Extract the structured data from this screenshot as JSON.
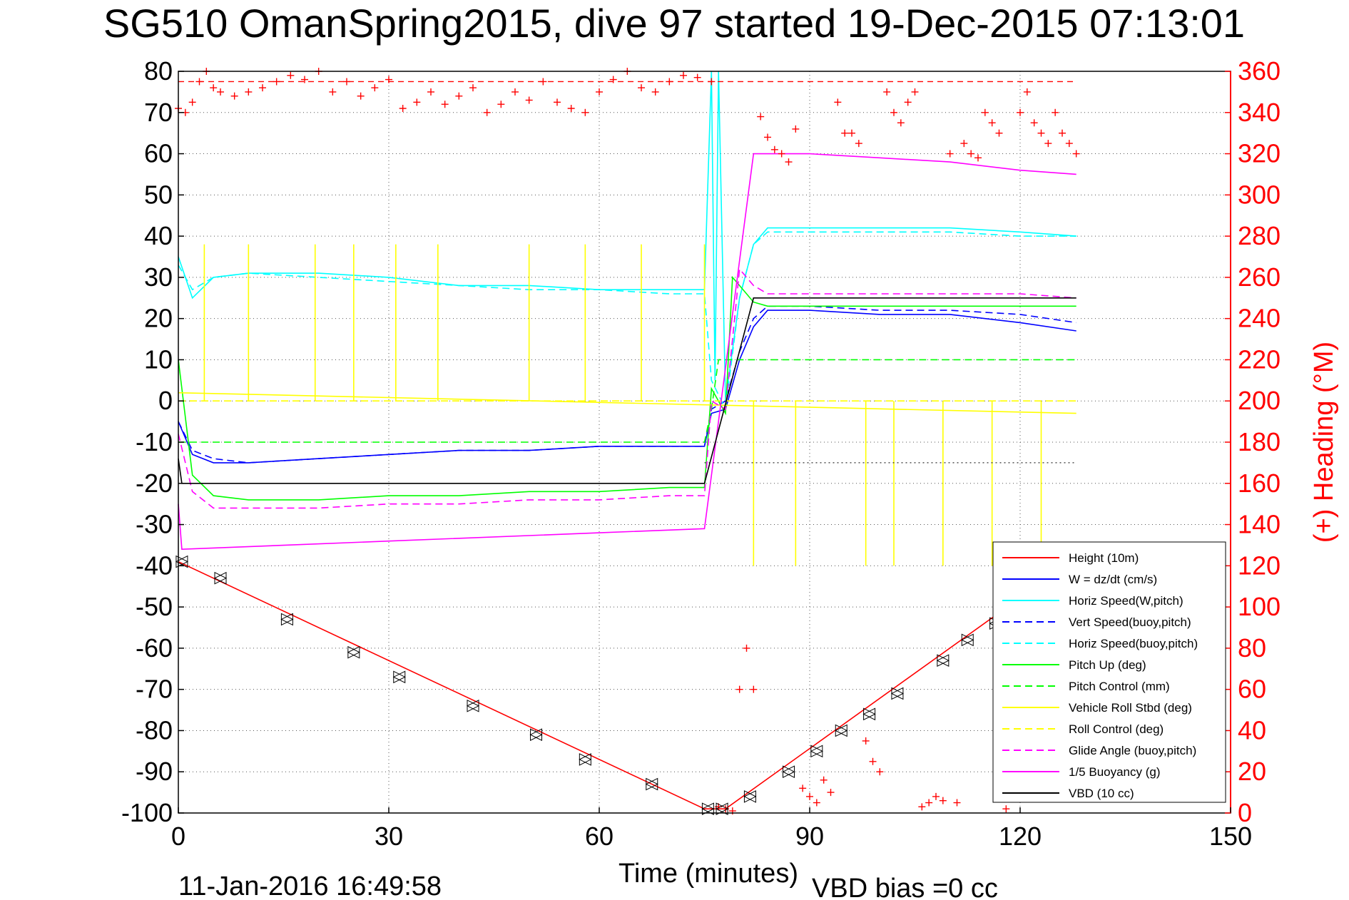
{
  "chart_data": {
    "type": "line",
    "title": "SG510 OmanSpring2015, dive 97 started 19-Dec-2015 07:13:01",
    "xlabel": "Time (minutes)",
    "ylabel_right": "(+) Heading (°M)",
    "xlim": [
      0,
      150
    ],
    "ylim": [
      -100,
      80
    ],
    "ylim_right": [
      0,
      360
    ],
    "x_ticks": [
      "0",
      "30",
      "60",
      "90",
      "120",
      "150"
    ],
    "x_tick_values": [
      0,
      30,
      60,
      90,
      120,
      150
    ],
    "y_ticks": [
      "80",
      "70",
      "60",
      "50",
      "40",
      "30",
      "20",
      "10",
      "0",
      "-10",
      "-20",
      "-30",
      "-40",
      "-50",
      "-60",
      "-70",
      "-80",
      "-90",
      "-100"
    ],
    "y_tick_values": [
      80,
      70,
      60,
      50,
      40,
      30,
      20,
      10,
      0,
      -10,
      -20,
      -30,
      -40,
      -50,
      -60,
      -70,
      -80,
      -90,
      -100
    ],
    "y_ticks_right": [
      "360",
      "340",
      "320",
      "300",
      "280",
      "260",
      "240",
      "220",
      "200",
      "180",
      "160",
      "140",
      "120",
      "100",
      "80",
      "60",
      "40",
      "20",
      "0"
    ],
    "y_tick_values_right": [
      360,
      340,
      320,
      300,
      280,
      260,
      240,
      220,
      200,
      180,
      160,
      140,
      120,
      100,
      80,
      60,
      40,
      20,
      0
    ],
    "grid": true,
    "legend_position": "bottom-right",
    "date_label": "11-Jan-2016 16:49:58",
    "vbd_bias_label": "VBD bias =0 cc",
    "series": [
      {
        "name": "Height (10m)",
        "color": "#ff0000",
        "style": "solid",
        "x": [
          0,
          75,
          78,
          128
        ],
        "y": [
          -39,
          -99,
          -99,
          -38
        ]
      },
      {
        "name": "W = dz/dt (cm/s)",
        "color": "#0000ff",
        "style": "solid",
        "x": [
          0,
          2,
          5,
          10,
          20,
          30,
          40,
          50,
          60,
          70,
          75,
          76,
          78,
          80,
          82,
          84,
          90,
          100,
          110,
          120,
          128
        ],
        "y": [
          -5,
          -13,
          -15,
          -15,
          -14,
          -13,
          -12,
          -12,
          -11,
          -11,
          -11,
          -3,
          -2,
          10,
          18,
          22,
          22,
          21,
          21,
          19,
          17
        ]
      },
      {
        "name": "Horiz Speed(W,pitch)",
        "color": "#00ffff",
        "style": "solid",
        "x": [
          0,
          2,
          5,
          10,
          20,
          30,
          40,
          50,
          60,
          70,
          75,
          76,
          76.5,
          77,
          78,
          80,
          82,
          84,
          90,
          100,
          110,
          120,
          128
        ],
        "y": [
          35,
          25,
          30,
          31,
          31,
          30,
          28,
          28,
          27,
          27,
          27,
          80,
          5,
          80,
          0,
          25,
          38,
          42,
          42,
          42,
          42,
          41,
          40
        ]
      },
      {
        "name": "Vert Speed(buoy,pitch)",
        "color": "#0000ff",
        "style": "dashed",
        "x": [
          0,
          2,
          5,
          10,
          20,
          30,
          40,
          50,
          60,
          70,
          75,
          76,
          78,
          80,
          82,
          84,
          90,
          100,
          110,
          120,
          128
        ],
        "y": [
          -5,
          -12,
          -14,
          -15,
          -14,
          -13,
          -12,
          -12,
          -11,
          -11,
          -11,
          -2,
          0,
          12,
          20,
          23,
          23,
          22,
          22,
          21,
          19
        ]
      },
      {
        "name": "Horiz Speed(buoy,pitch)",
        "color": "#00ffff",
        "style": "dashed",
        "x": [
          0,
          2,
          5,
          10,
          20,
          30,
          40,
          50,
          60,
          70,
          75,
          76,
          78,
          80,
          82,
          84,
          90,
          100,
          110,
          120,
          128
        ],
        "y": [
          33,
          27,
          30,
          31,
          30,
          29,
          28,
          27,
          27,
          26,
          26,
          5,
          -2,
          25,
          38,
          41,
          41,
          41,
          41,
          40,
          40
        ]
      },
      {
        "name": "Pitch Up (deg)",
        "color": "#00ff00",
        "style": "solid",
        "x": [
          0,
          2,
          5,
          10,
          20,
          30,
          40,
          50,
          60,
          70,
          75,
          76,
          78,
          79,
          80,
          82,
          84,
          90,
          100,
          110,
          120,
          128
        ],
        "y": [
          10,
          -18,
          -23,
          -24,
          -24,
          -23,
          -23,
          -22,
          -22,
          -21,
          -21,
          3,
          -3,
          30,
          28,
          24,
          23,
          23,
          23,
          23,
          23,
          23
        ]
      },
      {
        "name": "Pitch Control (mm)",
        "color": "#00ff00",
        "style": "dashed",
        "x": [
          0,
          1,
          30,
          60,
          75,
          76,
          77,
          80,
          128
        ],
        "y": [
          -10,
          -10,
          -10,
          -10,
          -10,
          -2,
          10,
          10,
          10
        ]
      },
      {
        "name": "Vehicle Roll Stbd (deg)",
        "color": "#ffff00",
        "style": "solid",
        "x": [
          0,
          128
        ],
        "y": [
          2,
          -3
        ]
      },
      {
        "name": "Roll Control (deg)",
        "color": "#ffff00",
        "style": "dashed",
        "x": [
          0,
          128
        ],
        "y": [
          0,
          0
        ]
      },
      {
        "name": "Glide Angle (buoy,pitch)",
        "color": "#ff00ff",
        "style": "dashed",
        "x": [
          0,
          2,
          5,
          10,
          20,
          30,
          40,
          50,
          60,
          70,
          75,
          76,
          78,
          80,
          82,
          84,
          90,
          100,
          110,
          120,
          128
        ],
        "y": [
          -8,
          -22,
          -26,
          -26,
          -26,
          -25,
          -25,
          -24,
          -24,
          -23,
          -23,
          0,
          -2,
          32,
          28,
          26,
          26,
          26,
          26,
          26,
          25
        ]
      },
      {
        "name": "1/5 Buoyancy (g)",
        "color": "#ff00ff",
        "style": "solid",
        "x": [
          0,
          0.5,
          30,
          60,
          75,
          82,
          90,
          100,
          110,
          120,
          128
        ],
        "y": [
          -25,
          -36,
          -34,
          -32,
          -31,
          60,
          60,
          59,
          58,
          56,
          55
        ]
      },
      {
        "name": "VBD (10 cc)",
        "color": "#000000",
        "style": "solid",
        "x": [
          0,
          0.5,
          75,
          82,
          128
        ],
        "y": [
          -14,
          -20,
          -20,
          25,
          25
        ]
      }
    ],
    "heading_points": {
      "name": "Heading",
      "color": "#ff0000",
      "marker": "+",
      "x": [
        0,
        1,
        2,
        3,
        4,
        5,
        6,
        8,
        10,
        12,
        14,
        16,
        18,
        20,
        22,
        24,
        26,
        28,
        30,
        32,
        34,
        36,
        38,
        40,
        42,
        44,
        46,
        48,
        50,
        52,
        54,
        56,
        58,
        60,
        62,
        64,
        66,
        68,
        70,
        72,
        74,
        76,
        77,
        78,
        79,
        80,
        81,
        82,
        83,
        84,
        85,
        86,
        87,
        88,
        89,
        90,
        91,
        92,
        93,
        94,
        95,
        96,
        97,
        98,
        99,
        100,
        101,
        102,
        103,
        104,
        105,
        106,
        107,
        108,
        109,
        110,
        111,
        112,
        113,
        114,
        115,
        116,
        117,
        118,
        119,
        120,
        121,
        122,
        123,
        124,
        125,
        126,
        127,
        128
      ],
      "y": [
        342,
        340,
        345,
        355,
        360,
        352,
        350,
        348,
        350,
        352,
        355,
        358,
        356,
        360,
        350,
        355,
        348,
        352,
        356,
        342,
        345,
        350,
        344,
        348,
        352,
        340,
        344,
        350,
        346,
        355,
        345,
        342,
        340,
        350,
        356,
        360,
        352,
        350,
        355,
        358,
        357,
        355,
        3,
        2,
        1,
        60,
        80,
        60,
        338,
        328,
        322,
        320,
        316,
        332,
        12,
        8,
        5,
        16,
        10,
        345,
        330,
        330,
        325,
        35,
        25,
        20,
        350,
        340,
        335,
        345,
        350,
        3,
        5,
        8,
        6,
        320,
        5,
        325,
        320,
        318,
        340,
        335,
        330,
        2,
        8,
        340,
        350,
        335,
        330,
        325,
        340,
        330,
        325,
        320
      ]
    },
    "vertical_markers": {
      "roll_control_spikes_down_x": [
        3.7,
        10,
        19.5,
        25,
        31,
        37,
        50,
        58,
        66,
        75
      ],
      "roll_control_spikes_up_x": [
        82,
        88,
        98,
        102,
        109,
        116,
        123
      ],
      "glide_angle_spikes_x": [
        31,
        37,
        50,
        58,
        66,
        83,
        89,
        96,
        102,
        109,
        116,
        123
      ]
    },
    "depth_markers": {
      "symbols": [
        "triangle-left",
        "triangle-right",
        "cross-box"
      ],
      "x": [
        0.5,
        6,
        15.5,
        25,
        31.5,
        42,
        51,
        58,
        67.5,
        75.5,
        77.5,
        81.5,
        87,
        91,
        94.5,
        98.5,
        102.5,
        109,
        112.5,
        116.5
      ],
      "y": [
        -39,
        -43,
        -53,
        -61,
        -67,
        -74,
        -81,
        -87,
        -93,
        -99,
        -99,
        -96,
        -90,
        -85,
        -80,
        -76,
        -71,
        -63,
        -58,
        -54
      ]
    },
    "reference_line_right": {
      "y": 355,
      "color": "#ff0000",
      "style": "dashed"
    },
    "reference_line_left": {
      "y": -15,
      "color": "#000000",
      "style": "dotted",
      "x_from": 75,
      "x_to": 128
    },
    "legend_items": [
      "Height (10m)",
      "W = dz/dt (cm/s)",
      "Horiz Speed(W,pitch)",
      "Vert Speed(buoy,pitch)",
      "Horiz Speed(buoy,pitch)",
      "Pitch Up (deg)",
      "Pitch Control (mm)",
      "Vehicle Roll Stbd (deg)",
      "Roll Control (deg)",
      "Glide Angle (buoy,pitch)",
      "1/5 Buoyancy (g)",
      "VBD (10 cc)"
    ]
  }
}
